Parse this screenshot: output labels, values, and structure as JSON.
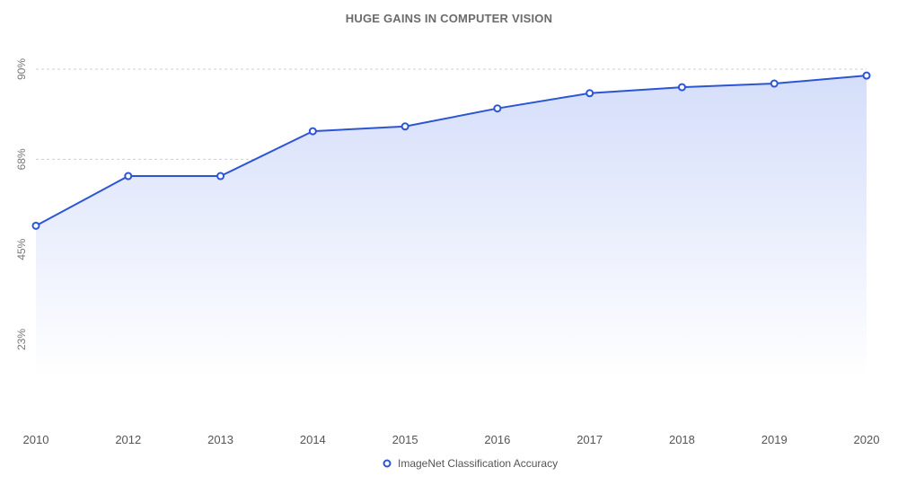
{
  "chart_data": {
    "type": "area",
    "title": "HUGE GAINS IN COMPUTER VISION",
    "xlabel": "",
    "ylabel": "",
    "categories": [
      "2010",
      "2012",
      "2013",
      "2014",
      "2015",
      "2016",
      "2017",
      "2018",
      "2019",
      "2020"
    ],
    "series": [
      {
        "name": "ImageNet Classification Accuracy",
        "values": [
          50.9,
          63.3,
          63.3,
          74.5,
          75.7,
          80.2,
          84.0,
          85.5,
          86.4,
          88.4
        ]
      }
    ],
    "yticks": [
      {
        "value": 22.5,
        "label": "23%"
      },
      {
        "value": 45,
        "label": "45%"
      },
      {
        "value": 67.5,
        "label": "68%"
      },
      {
        "value": 90,
        "label": "90%"
      }
    ],
    "ylim": [
      0,
      90
    ],
    "grid": true,
    "legend_position": "bottom",
    "colors": {
      "line": "#2c55d4",
      "fill_top": "#d5defa",
      "fill_bottom": "#ffffff",
      "marker_fill": "#ffffff"
    }
  }
}
